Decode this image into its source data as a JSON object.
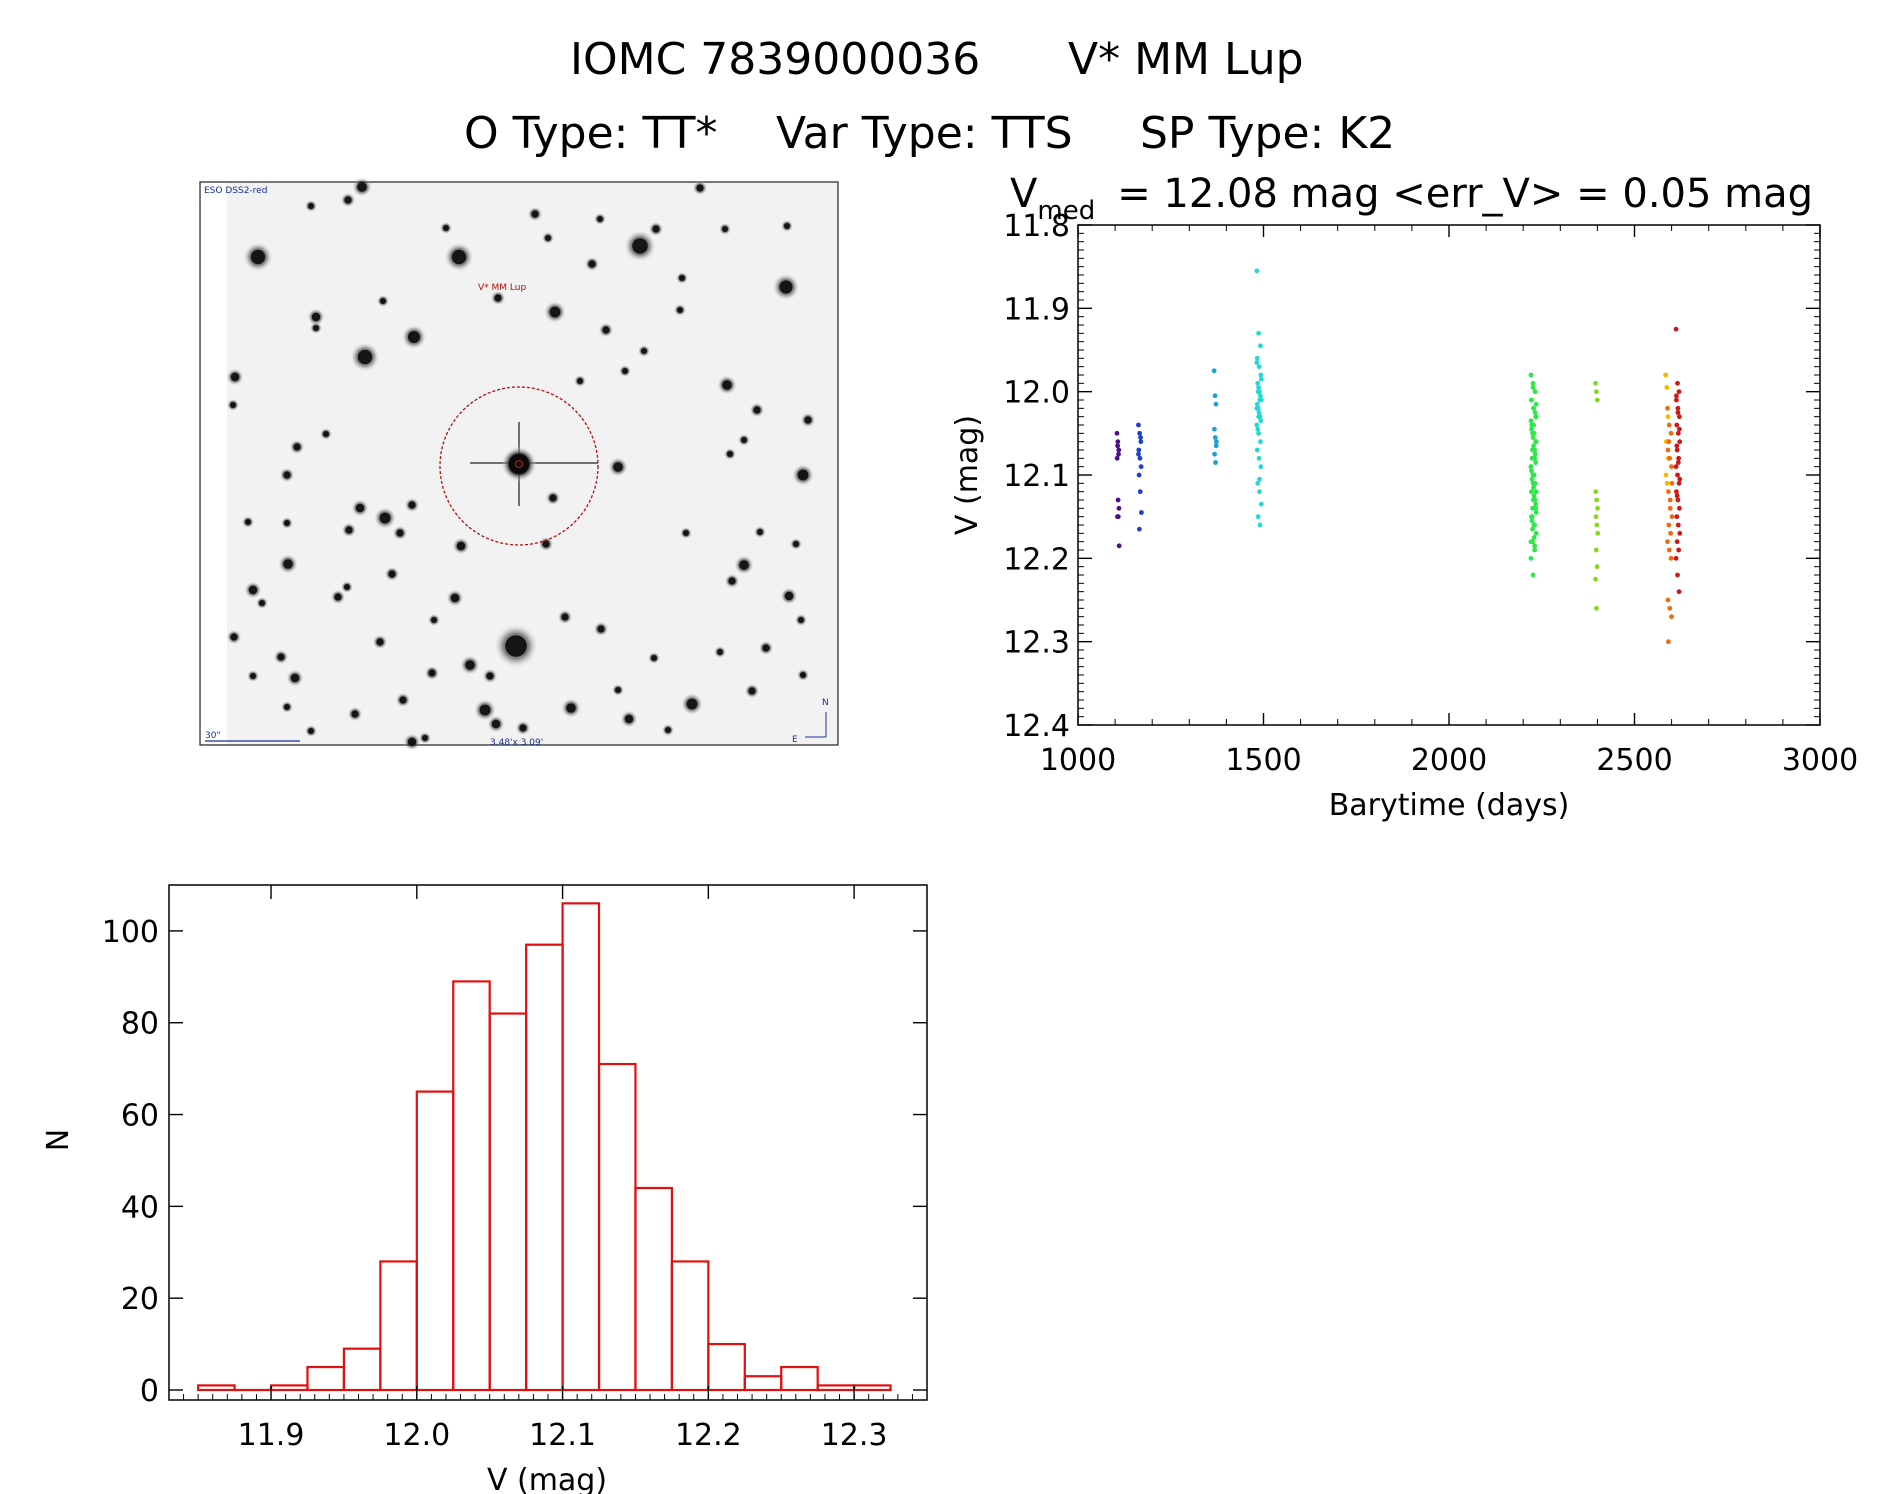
{
  "header": {
    "line1_id": "IOMC 7839000036",
    "line1_name": "V* MM Lup",
    "line2_otype": "O Type: TT*",
    "line2_vartype": "Var Type: TTS",
    "line2_sptype": "SP Type: K2"
  },
  "finder": {
    "survey_label": "ESO DSS2-red",
    "target_label": "V* MM Lup",
    "scale_label": "30\"",
    "fov_label": "3.48'x 3.09'",
    "compass_n": "N",
    "compass_e": "E",
    "colors": {
      "circle": "#b01010",
      "text_blue": "#1a2f9a"
    }
  },
  "chart_data": [
    {
      "type": "scatter",
      "title_prefix": "V",
      "title_sub": "med",
      "title_rest": "= 12.08 mag <err_V> = 0.05 mag",
      "xlabel": "Barytime (days)",
      "ylabel": "V (mag)",
      "xlim": [
        1000,
        3000
      ],
      "ylim": [
        12.4,
        11.8
      ],
      "y_inverted": true,
      "xticks": [
        1000,
        1500,
        2000,
        2500,
        3000
      ],
      "yticks": [
        11.8,
        11.9,
        12.0,
        12.1,
        12.2,
        12.3,
        12.4
      ],
      "series": [
        {
          "name": "s1",
          "color": "#4b0f8c",
          "x_center": 1108,
          "x_spread": 3,
          "values": [
            12.05,
            12.06,
            12.07,
            12.08,
            12.13,
            12.14,
            12.15,
            12.15,
            12.185,
            12.065,
            12.075
          ]
        },
        {
          "name": "s2",
          "color": "#1e3fd2",
          "x_center": 1167,
          "x_spread": 4,
          "values": [
            12.04,
            12.05,
            12.06,
            12.07,
            12.08,
            12.09,
            12.1,
            12.12,
            12.145,
            12.165,
            12.055,
            12.075
          ]
        },
        {
          "name": "s3",
          "color": "#1e9ed8",
          "x_center": 1370,
          "x_spread": 3,
          "values": [
            11.975,
            12.005,
            12.015,
            12.045,
            12.055,
            12.065,
            12.075,
            12.085,
            12.06
          ]
        },
        {
          "name": "s4",
          "color": "#24d8d4",
          "x_center": 1488,
          "x_spread": 6,
          "values": [
            11.855,
            11.93,
            11.945,
            11.96,
            11.97,
            11.98,
            11.99,
            12.0,
            12.01,
            12.02,
            12.03,
            12.04,
            12.05,
            12.06,
            12.07,
            12.08,
            12.09,
            12.11,
            12.12,
            12.135,
            12.15,
            12.16,
            11.965,
            11.995,
            12.005,
            12.015,
            12.025,
            12.035,
            12.045,
            12.105,
            11.985,
            12.0,
            12.01,
            12.02,
            12.03
          ]
        },
        {
          "name": "s5",
          "color": "#2ee84a",
          "x_center": 2228,
          "x_spread": 7,
          "values": [
            11.98,
            11.99,
            12.0,
            12.01,
            12.02,
            12.03,
            12.04,
            12.05,
            12.06,
            12.07,
            12.08,
            12.09,
            12.1,
            12.11,
            12.12,
            12.13,
            12.14,
            12.15,
            12.16,
            12.17,
            12.18,
            12.19,
            12.2,
            12.22,
            12.0,
            12.01,
            12.02,
            12.03,
            12.04,
            12.05,
            12.06,
            12.07,
            12.08,
            12.09,
            12.1,
            12.11,
            12.12,
            12.13,
            12.14,
            12.15,
            12.16,
            12.03,
            12.05,
            12.07,
            12.09,
            12.11,
            12.13,
            12.15,
            12.04,
            12.06,
            12.08,
            12.1,
            12.12,
            12.14,
            12.16,
            12.18,
            11.995,
            12.025,
            12.045,
            12.065,
            12.085,
            12.105,
            12.125,
            12.145,
            12.165,
            12.185,
            12.035,
            12.055,
            12.075,
            12.095,
            12.115,
            12.135,
            12.155,
            12.175,
            12.015
          ]
        },
        {
          "name": "s6",
          "color": "#88d818",
          "x_center": 2398,
          "x_spread": 3,
          "values": [
            11.99,
            12.0,
            12.01,
            12.12,
            12.13,
            12.14,
            12.15,
            12.16,
            12.17,
            12.19,
            12.21,
            12.225,
            12.26
          ]
        },
        {
          "name": "s7",
          "color": "#f5b800",
          "x_center": 2588,
          "x_spread": 4,
          "values": [
            11.98,
            11.995,
            12.03,
            12.1,
            12.11,
            12.08,
            12.06
          ]
        },
        {
          "name": "s8",
          "color": "#f06a10",
          "x_center": 2595,
          "x_spread": 6,
          "values": [
            12.02,
            12.04,
            12.05,
            12.07,
            12.08,
            12.09,
            12.12,
            12.14,
            12.15,
            12.16,
            12.17,
            12.18,
            12.19,
            12.2,
            12.25,
            12.26,
            12.27,
            12.3,
            12.13,
            12.11,
            12.06
          ]
        },
        {
          "name": "s9",
          "color": "#d01818",
          "x_center": 2617,
          "x_spread": 5,
          "values": [
            11.925,
            11.99,
            12.0,
            12.01,
            12.02,
            12.03,
            12.04,
            12.05,
            12.06,
            12.07,
            12.08,
            12.09,
            12.1,
            12.11,
            12.12,
            12.13,
            12.14,
            12.15,
            12.16,
            12.17,
            12.18,
            12.19,
            12.2,
            12.22,
            12.24,
            12.005,
            12.025,
            12.045,
            12.065,
            12.085,
            12.105,
            12.125
          ]
        }
      ]
    },
    {
      "type": "histogram",
      "title": "",
      "xlabel": "V (mag)",
      "ylabel": "N",
      "xlim": [
        11.83,
        12.35
      ],
      "ylim": [
        0,
        110
      ],
      "xticks": [
        11.9,
        12.0,
        12.1,
        12.2,
        12.3
      ],
      "yticks": [
        0,
        20,
        40,
        60,
        80,
        100
      ],
      "bin_edges": [
        11.85,
        11.875,
        11.9,
        11.925,
        11.95,
        11.975,
        12.0,
        12.025,
        12.05,
        12.075,
        12.1,
        12.125,
        12.15,
        12.175,
        12.2,
        12.225,
        12.25,
        12.275,
        12.3,
        12.325
      ],
      "counts": [
        1,
        0,
        1,
        5,
        9,
        28,
        65,
        89,
        82,
        97,
        106,
        71,
        44,
        28,
        10,
        3,
        5,
        1,
        1
      ],
      "color": "#e01010"
    }
  ]
}
